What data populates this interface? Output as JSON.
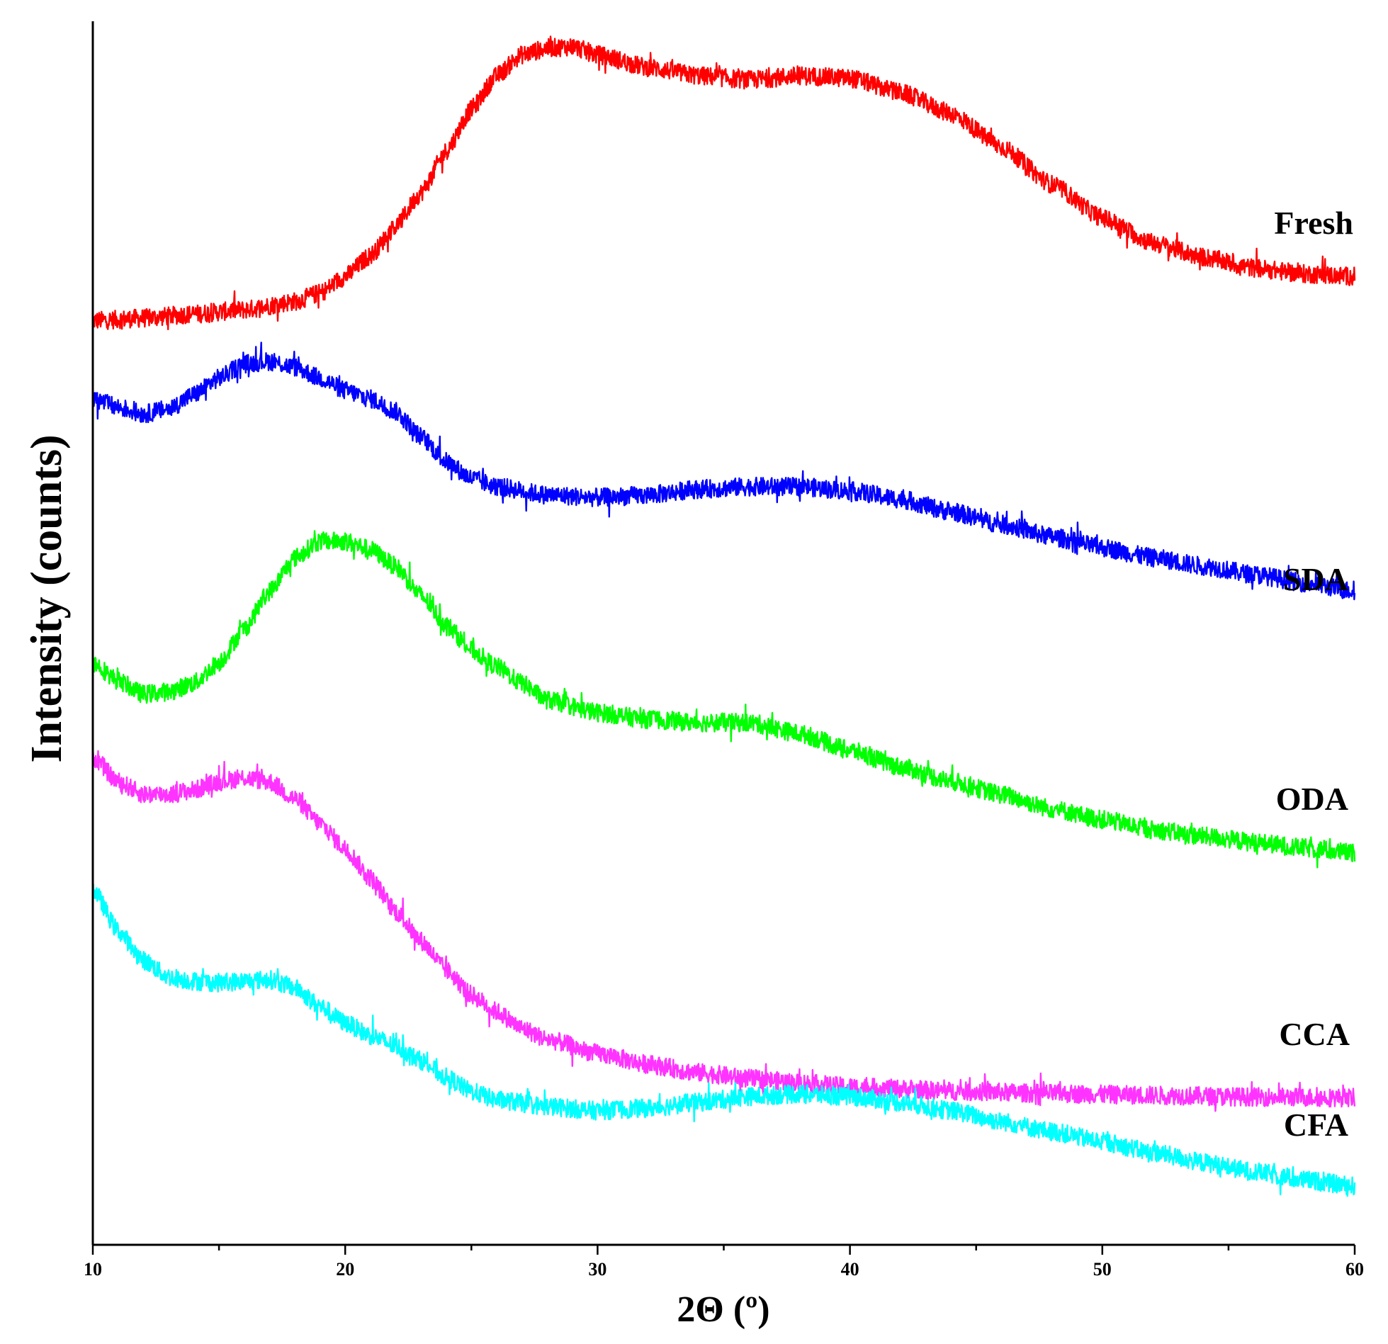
{
  "chart_data": {
    "type": "line",
    "title": "",
    "xlabel": "2Θ (º)",
    "ylabel": "Intensity (counts)",
    "xlim": [
      10,
      60
    ],
    "xticks": [
      10,
      20,
      30,
      40,
      50,
      60
    ],
    "grid": false,
    "legend": "inline labels at right end of each curve",
    "series": [
      {
        "name": "Fresh",
        "color": "#ff0000",
        "points": [
          [
            10,
            0.02
          ],
          [
            12,
            0.05
          ],
          [
            14,
            0.1
          ],
          [
            16,
            0.15
          ],
          [
            18,
            0.25
          ],
          [
            19,
            0.35
          ],
          [
            20,
            0.55
          ],
          [
            21,
            0.8
          ],
          [
            22,
            1.15
          ],
          [
            23,
            1.55
          ],
          [
            24,
            2.05
          ],
          [
            25,
            2.55
          ],
          [
            26,
            2.95
          ],
          [
            27,
            3.2
          ],
          [
            28,
            3.28
          ],
          [
            29,
            3.3
          ],
          [
            30,
            3.2
          ],
          [
            32,
            3.05
          ],
          [
            34,
            2.95
          ],
          [
            36,
            2.9
          ],
          [
            38,
            2.95
          ],
          [
            40,
            2.92
          ],
          [
            42,
            2.75
          ],
          [
            44,
            2.5
          ],
          [
            46,
            2.1
          ],
          [
            48,
            1.65
          ],
          [
            50,
            1.25
          ],
          [
            52,
            0.95
          ],
          [
            54,
            0.78
          ],
          [
            56,
            0.65
          ],
          [
            58,
            0.58
          ],
          [
            60,
            0.55
          ]
        ]
      },
      {
        "name": "SDA",
        "color": "#0000ff",
        "points": [
          [
            10,
            0
          ],
          [
            11,
            -0.1
          ],
          [
            12,
            -0.18
          ],
          [
            13,
            -0.12
          ],
          [
            14,
            0.05
          ],
          [
            15,
            0.25
          ],
          [
            16,
            0.42
          ],
          [
            17,
            0.45
          ],
          [
            18,
            0.38
          ],
          [
            19,
            0.25
          ],
          [
            20,
            0.1
          ],
          [
            21,
            0
          ],
          [
            22,
            -0.15
          ],
          [
            23,
            -0.45
          ],
          [
            24,
            -0.75
          ],
          [
            25,
            -0.95
          ],
          [
            26,
            -1.05
          ],
          [
            28,
            -1.15
          ],
          [
            30,
            -1.18
          ],
          [
            32,
            -1.15
          ],
          [
            34,
            -1.08
          ],
          [
            36,
            -1.05
          ],
          [
            38,
            -1.05
          ],
          [
            40,
            -1.1
          ],
          [
            42,
            -1.2
          ],
          [
            44,
            -1.35
          ],
          [
            46,
            -1.5
          ],
          [
            48,
            -1.65
          ],
          [
            50,
            -1.78
          ],
          [
            52,
            -1.9
          ],
          [
            54,
            -2.0
          ],
          [
            56,
            -2.1
          ],
          [
            58,
            -2.2
          ],
          [
            60,
            -2.3
          ]
        ]
      },
      {
        "name": "ODA",
        "color": "#00ff00",
        "points": [
          [
            10,
            0
          ],
          [
            11,
            -0.22
          ],
          [
            12,
            -0.38
          ],
          [
            13,
            -0.35
          ],
          [
            14,
            -0.25
          ],
          [
            15,
            0
          ],
          [
            16,
            0.4
          ],
          [
            17,
            0.85
          ],
          [
            18,
            1.25
          ],
          [
            19,
            1.45
          ],
          [
            20,
            1.45
          ],
          [
            21,
            1.35
          ],
          [
            22,
            1.15
          ],
          [
            23,
            0.8
          ],
          [
            24,
            0.45
          ],
          [
            25,
            0.15
          ],
          [
            26,
            -0.05
          ],
          [
            27,
            -0.25
          ],
          [
            28,
            -0.45
          ],
          [
            30,
            -0.6
          ],
          [
            32,
            -0.68
          ],
          [
            34,
            -0.72
          ],
          [
            36,
            -0.72
          ],
          [
            38,
            -0.85
          ],
          [
            40,
            -1.05
          ],
          [
            42,
            -1.25
          ],
          [
            44,
            -1.42
          ],
          [
            46,
            -1.58
          ],
          [
            48,
            -1.75
          ],
          [
            50,
            -1.88
          ],
          [
            52,
            -2.0
          ],
          [
            54,
            -2.08
          ],
          [
            56,
            -2.15
          ],
          [
            58,
            -2.22
          ],
          [
            60,
            -2.28
          ]
        ]
      },
      {
        "name": "CCA",
        "color": "#ff33ff",
        "points": [
          [
            10,
            0
          ],
          [
            11,
            -0.3
          ],
          [
            12,
            -0.45
          ],
          [
            13,
            -0.45
          ],
          [
            14,
            -0.4
          ],
          [
            15,
            -0.3
          ],
          [
            16,
            -0.25
          ],
          [
            17,
            -0.3
          ],
          [
            18,
            -0.5
          ],
          [
            19,
            -0.8
          ],
          [
            20,
            -1.1
          ],
          [
            21,
            -1.45
          ],
          [
            22,
            -1.85
          ],
          [
            23,
            -2.2
          ],
          [
            24,
            -2.55
          ],
          [
            25,
            -2.85
          ],
          [
            26,
            -3.05
          ],
          [
            27,
            -3.25
          ],
          [
            28,
            -3.38
          ],
          [
            30,
            -3.55
          ],
          [
            32,
            -3.68
          ],
          [
            34,
            -3.78
          ],
          [
            36,
            -3.85
          ],
          [
            38,
            -3.9
          ],
          [
            40,
            -3.95
          ],
          [
            44,
            -4.0
          ],
          [
            48,
            -4.03
          ],
          [
            52,
            -4.05
          ],
          [
            56,
            -4.07
          ],
          [
            60,
            -4.08
          ]
        ]
      },
      {
        "name": "CFA",
        "color": "#00ffff",
        "points": [
          [
            10,
            0
          ],
          [
            11,
            -0.5
          ],
          [
            12,
            -0.85
          ],
          [
            13,
            -1.05
          ],
          [
            14,
            -1.1
          ],
          [
            15,
            -1.12
          ],
          [
            16,
            -1.1
          ],
          [
            17,
            -1.08
          ],
          [
            18,
            -1.18
          ],
          [
            19,
            -1.4
          ],
          [
            20,
            -1.6
          ],
          [
            21,
            -1.75
          ],
          [
            22,
            -1.88
          ],
          [
            23,
            -2.05
          ],
          [
            24,
            -2.25
          ],
          [
            25,
            -2.42
          ],
          [
            26,
            -2.52
          ],
          [
            28,
            -2.6
          ],
          [
            30,
            -2.65
          ],
          [
            32,
            -2.62
          ],
          [
            34,
            -2.55
          ],
          [
            36,
            -2.48
          ],
          [
            38,
            -2.45
          ],
          [
            40,
            -2.48
          ],
          [
            42,
            -2.55
          ],
          [
            44,
            -2.65
          ],
          [
            46,
            -2.78
          ],
          [
            48,
            -2.9
          ],
          [
            50,
            -3.02
          ],
          [
            52,
            -3.15
          ],
          [
            54,
            -3.27
          ],
          [
            56,
            -3.38
          ],
          [
            58,
            -3.48
          ],
          [
            60,
            -3.55
          ]
        ]
      }
    ]
  }
}
